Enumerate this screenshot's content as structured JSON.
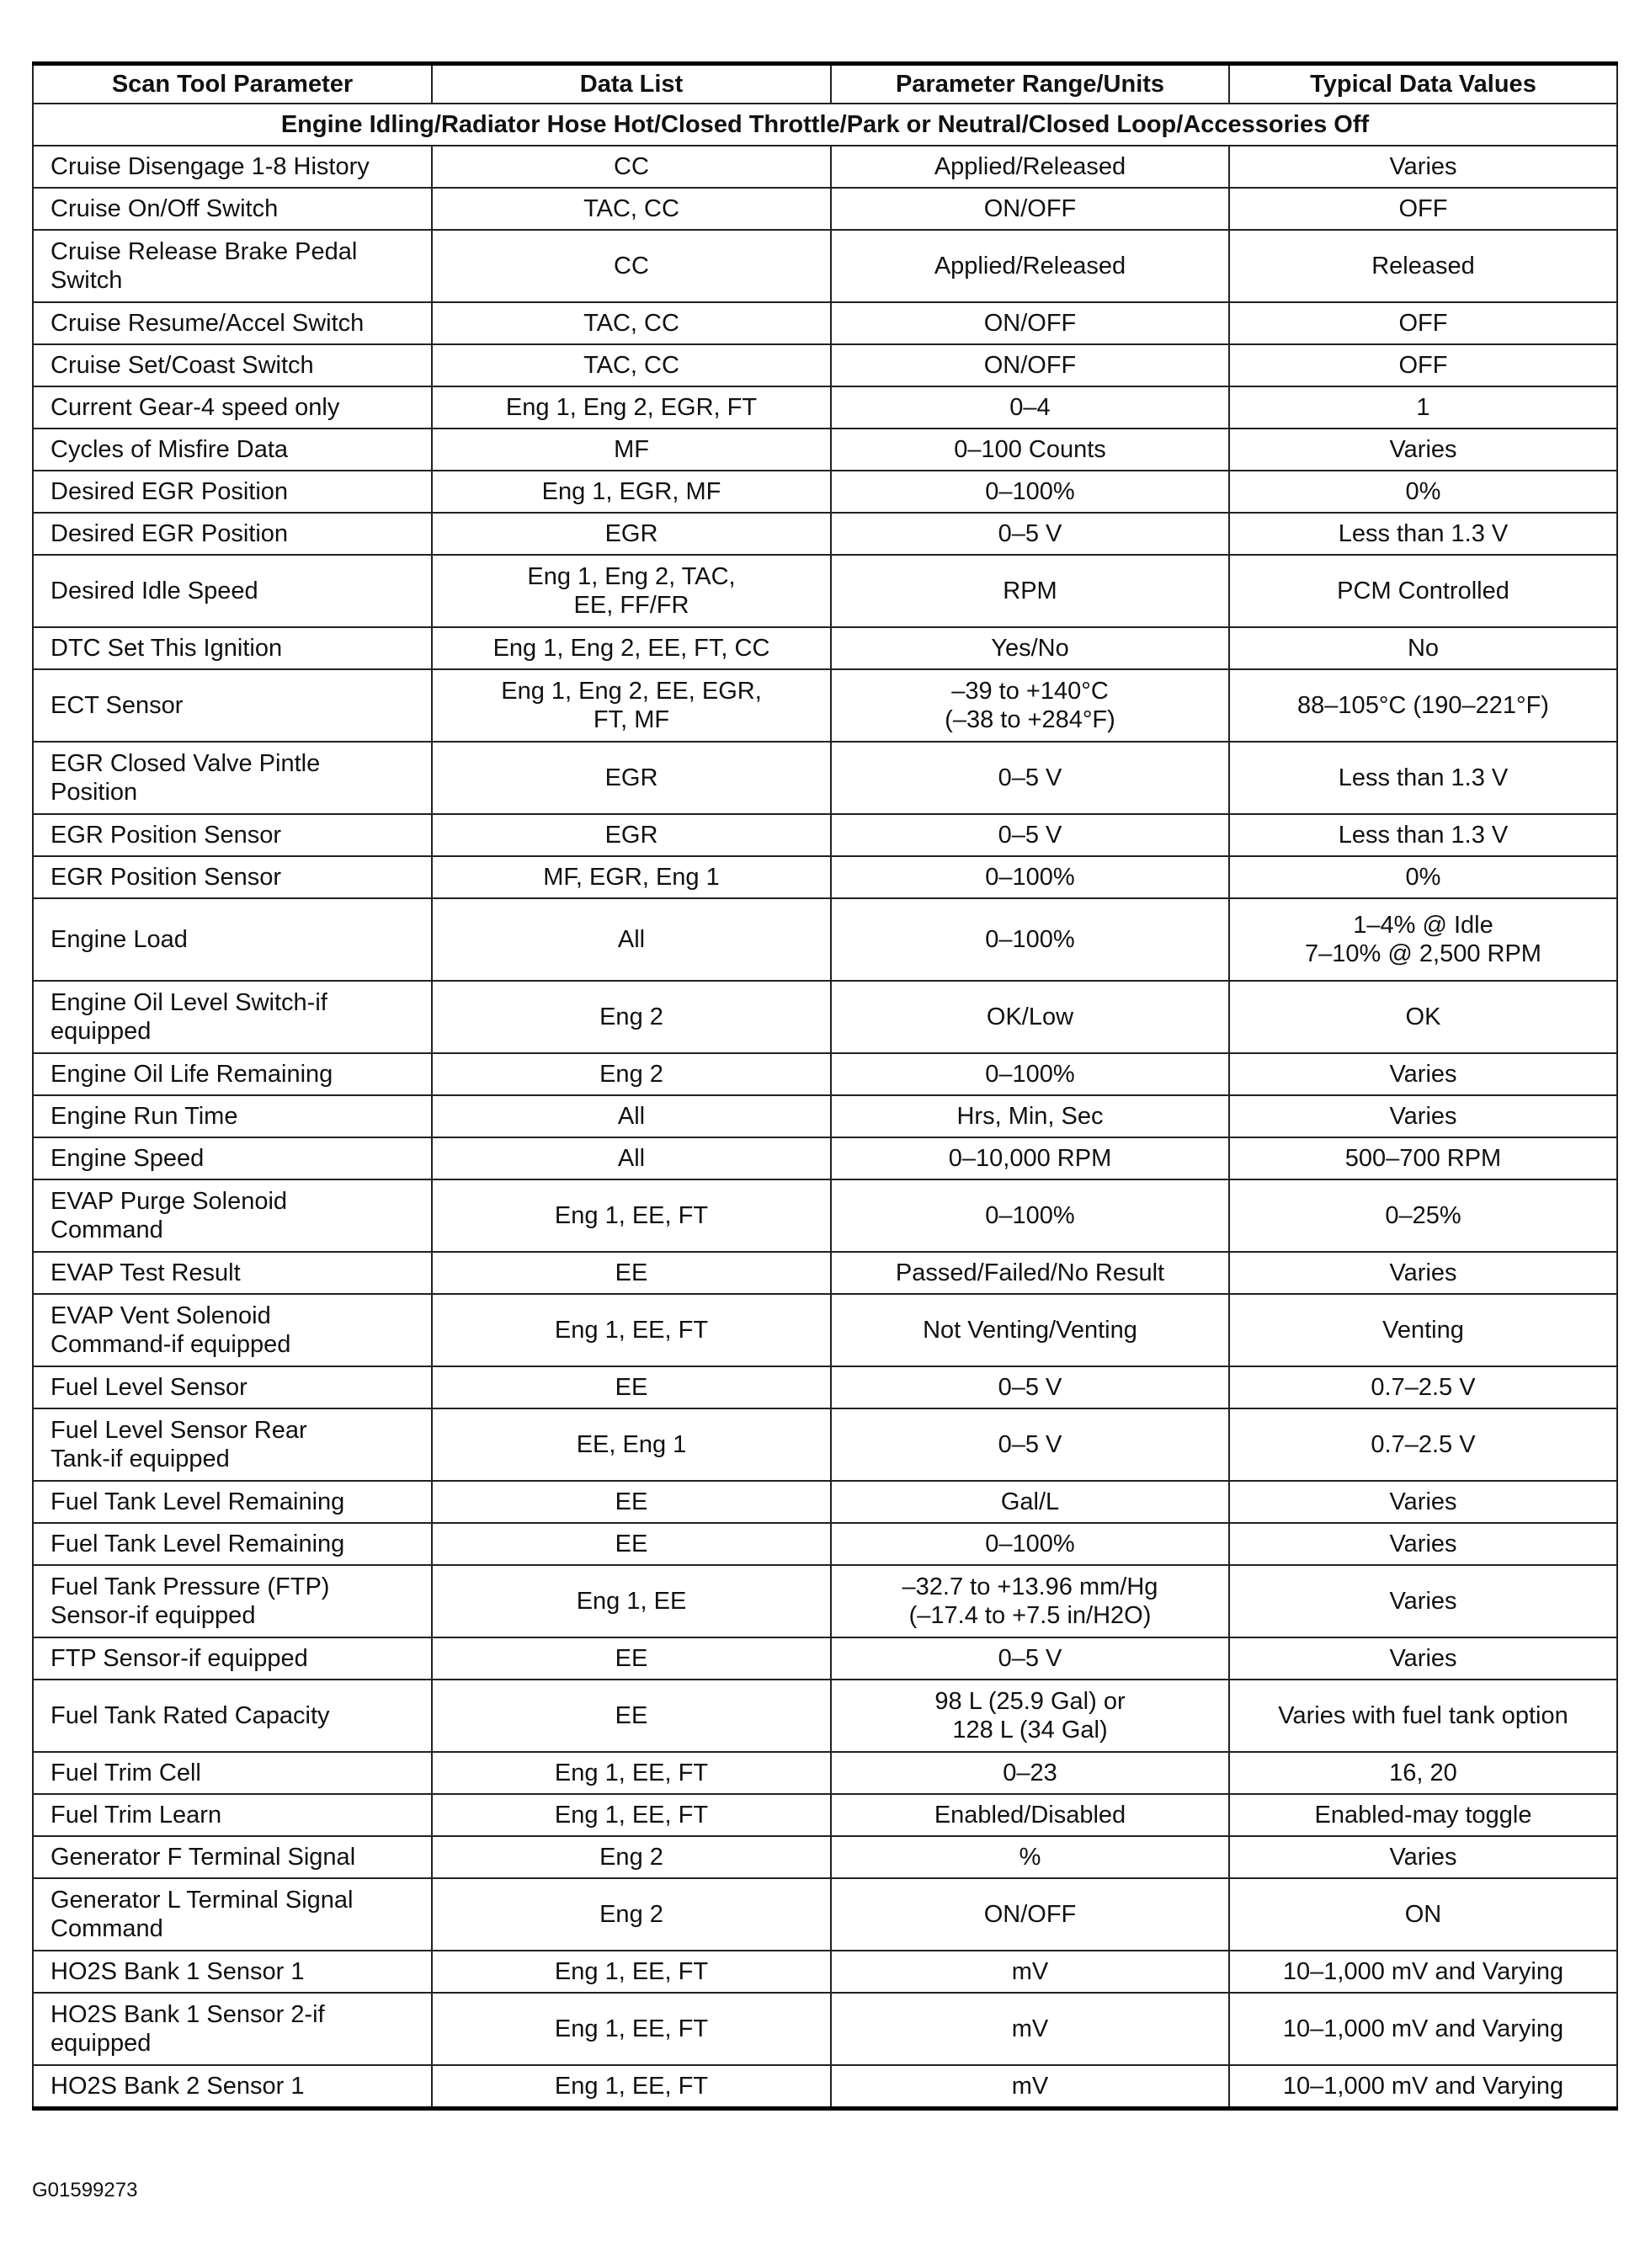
{
  "headers": [
    "Scan Tool Parameter",
    "Data List",
    "Parameter Range/Units",
    "Typical Data Values"
  ],
  "condition": "Engine Idling/Radiator Hose Hot/Closed Throttle/Park or Neutral/Closed Loop/Accessories Off",
  "rows": [
    [
      "Cruise Disengage 1-8 History",
      "CC",
      "Applied/Released",
      "Varies"
    ],
    [
      "Cruise On/Off Switch",
      "TAC, CC",
      "ON/OFF",
      "OFF"
    ],
    [
      "Cruise Release Brake Pedal\nSwitch",
      "CC",
      "Applied/Released",
      "Released"
    ],
    [
      "Cruise Resume/Accel Switch",
      "TAC, CC",
      "ON/OFF",
      "OFF"
    ],
    [
      "Cruise Set/Coast Switch",
      "TAC, CC",
      "ON/OFF",
      "OFF"
    ],
    [
      "Current Gear-4 speed only",
      "Eng 1, Eng 2, EGR, FT",
      "0–4",
      "1"
    ],
    [
      "Cycles of Misfire Data",
      "MF",
      "0–100 Counts",
      "Varies"
    ],
    [
      "Desired EGR Position",
      "Eng 1, EGR, MF",
      "0–100%",
      "0%"
    ],
    [
      "Desired EGR Position",
      "EGR",
      "0–5 V",
      "Less than 1.3 V"
    ],
    [
      "Desired Idle Speed",
      "Eng 1, Eng 2, TAC,\nEE, FF/FR",
      "RPM",
      "PCM Controlled"
    ],
    [
      "DTC Set This Ignition",
      "Eng 1, Eng 2, EE, FT, CC",
      "Yes/No",
      "No"
    ],
    [
      "ECT Sensor",
      "Eng 1, Eng 2, EE, EGR,\nFT, MF",
      "–39 to +140°C\n(–38 to +284°F)",
      "88–105°C (190–221°F)"
    ],
    [
      "EGR Closed Valve Pintle\nPosition",
      "EGR",
      "0–5 V",
      "Less than 1.3 V"
    ],
    [
      "EGR Position Sensor",
      "EGR",
      "0–5 V",
      "Less than 1.3 V"
    ],
    [
      "EGR Position Sensor",
      "MF, EGR, Eng 1",
      "0–100%",
      "0%"
    ],
    [
      "Engine Load",
      "All",
      "0–100%",
      "1–4% @ Idle\n7–10% @ 2,500 RPM"
    ],
    [
      "Engine Oil Level Switch-if\nequipped",
      "Eng 2",
      "OK/Low",
      "OK"
    ],
    [
      "Engine Oil Life Remaining",
      "Eng 2",
      "0–100%",
      "Varies"
    ],
    [
      "Engine Run Time",
      "All",
      "Hrs, Min, Sec",
      "Varies"
    ],
    [
      "Engine Speed",
      "All",
      "0–10,000 RPM",
      "500–700 RPM"
    ],
    [
      "EVAP Purge Solenoid\nCommand",
      "Eng 1, EE, FT",
      "0–100%",
      "0–25%"
    ],
    [
      "EVAP Test Result",
      "EE",
      "Passed/Failed/No Result",
      "Varies"
    ],
    [
      "EVAP Vent Solenoid\nCommand-if equipped",
      "Eng 1, EE, FT",
      "Not Venting/Venting",
      "Venting"
    ],
    [
      "Fuel Level Sensor",
      "EE",
      "0–5 V",
      "0.7–2.5 V"
    ],
    [
      "Fuel Level Sensor Rear\nTank-if equipped",
      "EE, Eng 1",
      "0–5 V",
      "0.7–2.5 V"
    ],
    [
      "Fuel Tank Level Remaining",
      "EE",
      "Gal/L",
      "Varies"
    ],
    [
      "Fuel Tank Level Remaining",
      "EE",
      "0–100%",
      "Varies"
    ],
    [
      "Fuel Tank Pressure (FTP)\nSensor-if equipped",
      "Eng 1, EE",
      "–32.7 to +13.96 mm/Hg\n(–17.4 to +7.5 in/H2O)",
      "Varies"
    ],
    [
      "FTP Sensor-if equipped",
      "EE",
      "0–5 V",
      "Varies"
    ],
    [
      "Fuel Tank Rated Capacity",
      "EE",
      "98 L (25.9 Gal) or\n128 L (34 Gal)",
      "Varies with fuel tank option"
    ],
    [
      "Fuel Trim Cell",
      "Eng 1, EE, FT",
      "0–23",
      "16, 20"
    ],
    [
      "Fuel Trim Learn",
      "Eng 1, EE, FT",
      "Enabled/Disabled",
      "Enabled-may toggle"
    ],
    [
      "Generator F Terminal Signal",
      "Eng 2",
      "%",
      "Varies"
    ],
    [
      "Generator L Terminal Signal\nCommand",
      "Eng 2",
      "ON/OFF",
      "ON"
    ],
    [
      "HO2S Bank 1 Sensor 1",
      "Eng 1, EE, FT",
      "mV",
      "10–1,000 mV and Varying"
    ],
    [
      "HO2S Bank 1 Sensor 2-if\nequipped",
      "Eng 1, EE, FT",
      "mV",
      "10–1,000 mV and Varying"
    ],
    [
      "HO2S Bank 2 Sensor 1",
      "Eng 1, EE, FT",
      "mV",
      "10–1,000 mV and Varying"
    ]
  ],
  "figure_id": "G01599273"
}
